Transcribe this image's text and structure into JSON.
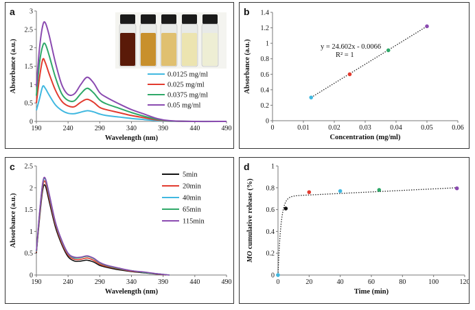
{
  "chart_data": [
    {
      "id": "a",
      "panel_label": "a",
      "type": "line",
      "xlabel": "Wavelength (nm)",
      "ylabel": "Absorbance (a.u.)",
      "xlim": [
        190,
        490
      ],
      "ylim": [
        0,
        3
      ],
      "xticks": [
        190,
        240,
        290,
        340,
        390,
        440,
        490
      ],
      "yticks": [
        0,
        0.5,
        1,
        1.5,
        2,
        2.5,
        3
      ],
      "legend": "inside right-middle",
      "inset": "photo of five vials with solutions from dark brown to light yellow",
      "inset_colors": [
        "#5a1a08",
        "#c8902c",
        "#e0c070",
        "#ece4b0",
        "#eeeed4"
      ],
      "series": [
        {
          "name": "0.0125 mg/ml",
          "color": "#40b8e0",
          "points": [
            [
              190,
              0.3
            ],
            [
              195,
              0.62
            ],
            [
              200,
              0.95
            ],
            [
              204,
              0.9
            ],
            [
              210,
              0.72
            ],
            [
              220,
              0.45
            ],
            [
              230,
              0.3
            ],
            [
              240,
              0.22
            ],
            [
              250,
              0.21
            ],
            [
              260,
              0.25
            ],
            [
              270,
              0.29
            ],
            [
              280,
              0.26
            ],
            [
              290,
              0.2
            ],
            [
              300,
              0.16
            ],
            [
              320,
              0.12
            ],
            [
              340,
              0.08
            ],
            [
              360,
              0.05
            ],
            [
              380,
              0.02
            ],
            [
              400,
              0.005
            ],
            [
              440,
              0
            ],
            [
              490,
              0
            ]
          ]
        },
        {
          "name": "0.025 mg/ml",
          "color": "#e23a2e",
          "points": [
            [
              190,
              0.5
            ],
            [
              195,
              1.2
            ],
            [
              200,
              1.68
            ],
            [
              204,
              1.6
            ],
            [
              210,
              1.3
            ],
            [
              220,
              0.85
            ],
            [
              230,
              0.55
            ],
            [
              240,
              0.42
            ],
            [
              250,
              0.4
            ],
            [
              260,
              0.52
            ],
            [
              270,
              0.6
            ],
            [
              280,
              0.52
            ],
            [
              290,
              0.38
            ],
            [
              300,
              0.32
            ],
            [
              320,
              0.24
            ],
            [
              340,
              0.16
            ],
            [
              360,
              0.1
            ],
            [
              380,
              0.04
            ],
            [
              400,
              0.01
            ],
            [
              440,
              0
            ],
            [
              490,
              0
            ]
          ]
        },
        {
          "name": "0.0375 mg/ml",
          "color": "#2ea868",
          "points": [
            [
              190,
              0.7
            ],
            [
              195,
              1.6
            ],
            [
              200,
              2.05
            ],
            [
              204,
              2.1
            ],
            [
              210,
              1.8
            ],
            [
              220,
              1.2
            ],
            [
              230,
              0.75
            ],
            [
              240,
              0.57
            ],
            [
              250,
              0.56
            ],
            [
              260,
              0.75
            ],
            [
              270,
              0.9
            ],
            [
              280,
              0.78
            ],
            [
              290,
              0.58
            ],
            [
              300,
              0.48
            ],
            [
              320,
              0.36
            ],
            [
              340,
              0.24
            ],
            [
              360,
              0.14
            ],
            [
              380,
              0.06
            ],
            [
              400,
              0.015
            ],
            [
              440,
              0
            ],
            [
              490,
              0
            ]
          ]
        },
        {
          "name": "0.05 mg/ml",
          "color": "#8a4ab0",
          "points": [
            [
              190,
              0.95
            ],
            [
              195,
              2.0
            ],
            [
              200,
              2.6
            ],
            [
              204,
              2.68
            ],
            [
              210,
              2.35
            ],
            [
              220,
              1.6
            ],
            [
              230,
              1.0
            ],
            [
              240,
              0.73
            ],
            [
              250,
              0.75
            ],
            [
              260,
              1.0
            ],
            [
              270,
              1.2
            ],
            [
              280,
              1.05
            ],
            [
              290,
              0.78
            ],
            [
              300,
              0.66
            ],
            [
              320,
              0.48
            ],
            [
              340,
              0.32
            ],
            [
              360,
              0.2
            ],
            [
              380,
              0.08
            ],
            [
              400,
              0.02
            ],
            [
              440,
              0
            ],
            [
              490,
              0
            ]
          ]
        }
      ]
    },
    {
      "id": "b",
      "panel_label": "b",
      "type": "scatter",
      "xlabel": "Concentration (mg/ml)",
      "ylabel": "Absorbance (a.u.)",
      "xlim": [
        0,
        0.06
      ],
      "ylim": [
        0,
        1.4
      ],
      "xticks": [
        0,
        0.01,
        0.02,
        0.03,
        0.04,
        0.05,
        0.06
      ],
      "yticks": [
        0,
        0.2,
        0.4,
        0.6,
        0.8,
        1,
        1.2,
        1.4
      ],
      "equation": "y = 24.602x - 0.0066",
      "r_squared": "R² = 1",
      "trendline": "dotted",
      "points": [
        {
          "x": 0.0125,
          "y": 0.3,
          "color": "#40b8e0"
        },
        {
          "x": 0.025,
          "y": 0.6,
          "color": "#e23a2e"
        },
        {
          "x": 0.0375,
          "y": 0.91,
          "color": "#2ea868"
        },
        {
          "x": 0.05,
          "y": 1.22,
          "color": "#8a4ab0"
        }
      ]
    },
    {
      "id": "c",
      "panel_label": "c",
      "type": "line",
      "xlabel": "Wavelength (nm)",
      "ylabel": "Absorbance (a.u.)",
      "xlim": [
        190,
        490
      ],
      "ylim": [
        0,
        2.5
      ],
      "xticks": [
        190,
        240,
        290,
        340,
        390,
        440,
        490
      ],
      "yticks": [
        0,
        0.5,
        1,
        1.5,
        2,
        2.5
      ],
      "legend": "inside top-right",
      "series": [
        {
          "name": "5min",
          "color": "#111111",
          "points": [
            [
              190,
              0.5
            ],
            [
              195,
              1.3
            ],
            [
              200,
              1.95
            ],
            [
              204,
              2.05
            ],
            [
              210,
              1.7
            ],
            [
              220,
              1.1
            ],
            [
              230,
              0.7
            ],
            [
              240,
              0.42
            ],
            [
              250,
              0.32
            ],
            [
              260,
              0.32
            ],
            [
              270,
              0.34
            ],
            [
              280,
              0.3
            ],
            [
              290,
              0.22
            ],
            [
              300,
              0.18
            ],
            [
              320,
              0.12
            ],
            [
              340,
              0.08
            ],
            [
              360,
              0.05
            ],
            [
              380,
              0.02
            ],
            [
              395,
              0.0
            ]
          ]
        },
        {
          "name": "20min",
          "color": "#e23a2e",
          "points": [
            [
              190,
              0.52
            ],
            [
              195,
              1.35
            ],
            [
              200,
              2.02
            ],
            [
              204,
              2.14
            ],
            [
              210,
              1.78
            ],
            [
              220,
              1.16
            ],
            [
              230,
              0.74
            ],
            [
              240,
              0.46
            ],
            [
              250,
              0.36
            ],
            [
              260,
              0.36
            ],
            [
              270,
              0.39
            ],
            [
              280,
              0.34
            ],
            [
              290,
              0.25
            ],
            [
              300,
              0.2
            ],
            [
              320,
              0.14
            ],
            [
              340,
              0.09
            ],
            [
              360,
              0.06
            ],
            [
              380,
              0.025
            ],
            [
              398,
              0.0
            ]
          ]
        },
        {
          "name": "40min",
          "color": "#40b8e0",
          "points": [
            [
              190,
              0.54
            ],
            [
              195,
              1.4
            ],
            [
              200,
              2.08
            ],
            [
              204,
              2.2
            ],
            [
              210,
              1.84
            ],
            [
              220,
              1.2
            ],
            [
              230,
              0.78
            ],
            [
              240,
              0.49
            ],
            [
              250,
              0.39
            ],
            [
              260,
              0.4
            ],
            [
              270,
              0.43
            ],
            [
              280,
              0.38
            ],
            [
              290,
              0.28
            ],
            [
              300,
              0.22
            ],
            [
              320,
              0.15
            ],
            [
              340,
              0.1
            ],
            [
              360,
              0.06
            ],
            [
              380,
              0.03
            ],
            [
              400,
              0.0
            ]
          ]
        },
        {
          "name": "65min",
          "color": "#2ea868",
          "points": [
            [
              190,
              0.55
            ],
            [
              195,
              1.42
            ],
            [
              200,
              2.1
            ],
            [
              204,
              2.21
            ],
            [
              210,
              1.86
            ],
            [
              220,
              1.21
            ],
            [
              230,
              0.79
            ],
            [
              240,
              0.5
            ],
            [
              250,
              0.4
            ],
            [
              260,
              0.4
            ],
            [
              270,
              0.43
            ],
            [
              280,
              0.38
            ],
            [
              290,
              0.28
            ],
            [
              300,
              0.22
            ],
            [
              320,
              0.15
            ],
            [
              340,
              0.1
            ],
            [
              360,
              0.06
            ],
            [
              380,
              0.03
            ],
            [
              400,
              0.0
            ]
          ]
        },
        {
          "name": "115min",
          "color": "#8a4ab0",
          "points": [
            [
              190,
              0.56
            ],
            [
              195,
              1.44
            ],
            [
              200,
              2.12
            ],
            [
              204,
              2.22
            ],
            [
              210,
              1.88
            ],
            [
              220,
              1.22
            ],
            [
              230,
              0.8
            ],
            [
              240,
              0.5
            ],
            [
              250,
              0.41
            ],
            [
              260,
              0.41
            ],
            [
              270,
              0.44
            ],
            [
              280,
              0.39
            ],
            [
              290,
              0.29
            ],
            [
              300,
              0.23
            ],
            [
              320,
              0.16
            ],
            [
              340,
              0.1
            ],
            [
              360,
              0.07
            ],
            [
              380,
              0.03
            ],
            [
              400,
              0.0
            ]
          ]
        }
      ]
    },
    {
      "id": "d",
      "panel_label": "d",
      "type": "scatter",
      "xlabel": "Time (min)",
      "ylabel_italic": "MO",
      "ylabel_rest": " cumulative release (%)",
      "xlim": [
        0,
        120
      ],
      "ylim": [
        0,
        1
      ],
      "xticks": [
        0,
        20,
        40,
        60,
        80,
        100,
        120
      ],
      "yticks": [
        0,
        0.2,
        0.4,
        0.6,
        0.8,
        1
      ],
      "trendline": "dotted",
      "points": [
        {
          "x": 0,
          "y": 0,
          "color": "#40b8e0"
        },
        {
          "x": 5,
          "y": 0.61,
          "color": "#111111"
        },
        {
          "x": 20,
          "y": 0.76,
          "color": "#e23a2e"
        },
        {
          "x": 40,
          "y": 0.77,
          "color": "#40b8e0"
        },
        {
          "x": 65,
          "y": 0.78,
          "color": "#2ea868"
        },
        {
          "x": 115,
          "y": 0.795,
          "color": "#8a4ab0"
        }
      ]
    }
  ]
}
